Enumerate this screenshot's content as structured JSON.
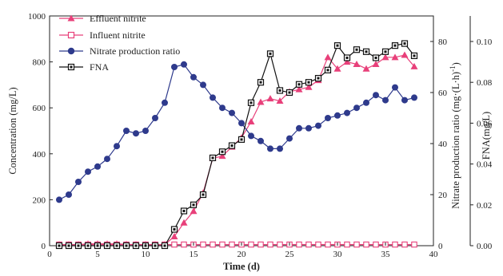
{
  "chart_data": {
    "type": "line",
    "xlabel": "Time (d)",
    "ylabel_left": "Concentration (mg/L)",
    "ylabel_right1": "Nitrate production ratio (mg·(L·h)",
    "ylabel_right1_sup": "-1",
    "ylabel_right1_tail": ")",
    "ylabel_right2": "FNA(mg/L)",
    "xlim": [
      0,
      40
    ],
    "ylim_left": [
      0,
      1000
    ],
    "ylim_right1": [
      0,
      90
    ],
    "ylim_right2": [
      0,
      0.1125
    ],
    "x_ticks": [
      0,
      5,
      10,
      15,
      20,
      25,
      30,
      35,
      40
    ],
    "x_tick_labels": [
      "0",
      "5",
      "10",
      "15",
      "20",
      "25",
      "30",
      "35",
      "40"
    ],
    "y_left_ticks": [
      0,
      200,
      400,
      600,
      800,
      1000
    ],
    "y_left_tick_labels": [
      "0",
      "200",
      "400",
      "600",
      "800",
      "1000"
    ],
    "y_right1_ticks": [
      0,
      20,
      40,
      60,
      80
    ],
    "y_right1_tick_labels": [
      "0",
      "20",
      "40",
      "60",
      "80"
    ],
    "y_right2_ticks": [
      0,
      0.02,
      0.04,
      0.06,
      0.08,
      0.1
    ],
    "y_right2_tick_labels": [
      "0.00",
      "0.02",
      "0.04",
      "0.06",
      "0.08",
      "0.10"
    ],
    "legend_position": "top-left",
    "series": [
      {
        "name": "Effluent nitrite",
        "axis": "left",
        "marker": "triangle",
        "color": "#e8407a",
        "x": [
          1,
          2,
          3,
          4,
          5,
          6,
          7,
          8,
          9,
          10,
          11,
          12,
          13,
          14,
          15,
          16,
          17,
          18,
          19,
          20,
          21,
          22,
          23,
          24,
          25,
          26,
          27,
          28,
          29,
          30,
          31,
          32,
          33,
          34,
          35,
          36,
          37,
          38
        ],
        "values": [
          5,
          5,
          5,
          8,
          8,
          8,
          8,
          6,
          5,
          5,
          5,
          5,
          40,
          100,
          150,
          230,
          380,
          390,
          430,
          470,
          540,
          625,
          640,
          630,
          670,
          680,
          690,
          720,
          820,
          770,
          800,
          790,
          770,
          790,
          820,
          820,
          830,
          780
        ]
      },
      {
        "name": "Influent nitrite",
        "axis": "left",
        "marker": "square-open",
        "color": "#e8407a",
        "x": [
          1,
          2,
          3,
          4,
          5,
          6,
          7,
          8,
          9,
          10,
          11,
          12,
          13,
          14,
          15,
          16,
          17,
          18,
          19,
          20,
          21,
          22,
          23,
          24,
          25,
          26,
          27,
          28,
          29,
          30,
          31,
          32,
          33,
          34,
          35,
          36,
          37,
          38
        ],
        "values": [
          5,
          5,
          5,
          5,
          5,
          5,
          5,
          5,
          5,
          5,
          5,
          5,
          5,
          5,
          5,
          5,
          5,
          5,
          5,
          5,
          5,
          5,
          5,
          5,
          5,
          5,
          5,
          5,
          5,
          5,
          5,
          5,
          5,
          5,
          5,
          5,
          5,
          5
        ]
      },
      {
        "name": "Nitrate production ratio",
        "axis": "right1",
        "marker": "circle",
        "color": "#2e3a8c",
        "x": [
          1,
          2,
          3,
          4,
          5,
          6,
          7,
          8,
          9,
          10,
          11,
          12,
          13,
          14,
          15,
          16,
          17,
          18,
          19,
          20,
          21,
          22,
          23,
          24,
          25,
          26,
          27,
          28,
          29,
          30,
          31,
          32,
          33,
          34,
          35,
          36,
          37,
          38
        ],
        "values": [
          18,
          20,
          25,
          29,
          31,
          34,
          39,
          45,
          44,
          45,
          50,
          56,
          70,
          71,
          66,
          63,
          58,
          54,
          52,
          48,
          43,
          41,
          38,
          38,
          42,
          46,
          46,
          47,
          50,
          51,
          52,
          54,
          56,
          59,
          57,
          62,
          57,
          58
        ]
      },
      {
        "name": "FNA",
        "axis": "right2",
        "marker": "square-filled",
        "color": "#111111",
        "x": [
          1,
          2,
          3,
          4,
          5,
          6,
          7,
          8,
          9,
          10,
          11,
          12,
          13,
          14,
          15,
          16,
          17,
          18,
          19,
          20,
          21,
          22,
          23,
          24,
          25,
          26,
          27,
          28,
          29,
          30,
          31,
          32,
          33,
          34,
          35,
          36,
          37,
          38
        ],
        "values": [
          0,
          0,
          0,
          0,
          0,
          0,
          0,
          0,
          0,
          0,
          0,
          0,
          0.008,
          0.017,
          0.02,
          0.025,
          0.043,
          0.046,
          0.049,
          0.052,
          0.07,
          0.08,
          0.094,
          0.076,
          0.075,
          0.079,
          0.08,
          0.082,
          0.086,
          0.098,
          0.092,
          0.096,
          0.095,
          0.092,
          0.095,
          0.098,
          0.099,
          0.093
        ]
      }
    ]
  }
}
